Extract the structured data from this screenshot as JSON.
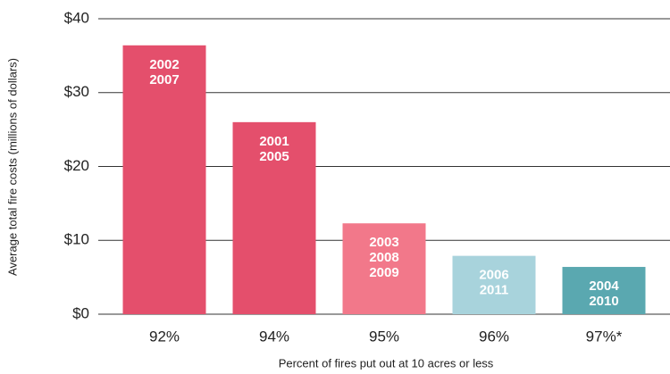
{
  "chart_data": {
    "type": "bar",
    "ylabel": "Average total fire costs (millions of dollars)",
    "xlabel": "Percent of fires put out at 10 acres or less",
    "categories": [
      "92%",
      "94%",
      "95%",
      "96%",
      "97%*"
    ],
    "values": [
      36.4,
      26.0,
      12.3,
      7.9,
      6.4
    ],
    "bar_labels": [
      [
        "2002",
        "2007"
      ],
      [
        "2001",
        "2005"
      ],
      [
        "2003",
        "2008",
        "2009"
      ],
      [
        "2006",
        "2011"
      ],
      [
        "2004",
        "2010"
      ]
    ],
    "colors": [
      "#e44f6c",
      "#e44f6c",
      "#f2788a",
      "#a8d3dc",
      "#5aa8b0"
    ],
    "ylim": [
      0,
      40
    ],
    "yticks": [
      {
        "value": 0,
        "label": "$0"
      },
      {
        "value": 10,
        "label": "$10"
      },
      {
        "value": 20,
        "label": "$20"
      },
      {
        "value": 30,
        "label": "$30"
      },
      {
        "value": 40,
        "label": "$40"
      }
    ],
    "grid": true
  }
}
